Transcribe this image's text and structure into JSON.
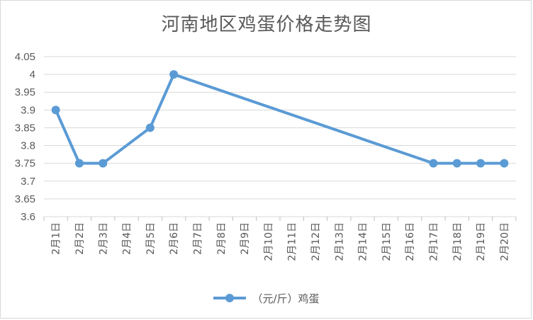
{
  "chart_data": {
    "type": "line",
    "title": "河南地区鸡蛋价格走势图",
    "categories": [
      "2月1日",
      "2月2日",
      "2月3日",
      "2月4日",
      "2月5日",
      "2月6日",
      "2月7日",
      "2月8日",
      "2月9日",
      "2月10日",
      "2月11日",
      "2月12日",
      "2月13日",
      "2月14日",
      "2月15日",
      "2月16日",
      "2月17日",
      "2月18日",
      "2月19日",
      "2月20日"
    ],
    "series": [
      {
        "name": "（元/斤）鸡蛋",
        "color": "#5b9bd5",
        "values": [
          3.9,
          3.75,
          3.75,
          null,
          3.85,
          4.0,
          null,
          null,
          null,
          null,
          null,
          null,
          null,
          null,
          null,
          null,
          3.75,
          3.75,
          3.75,
          3.75
        ]
      }
    ],
    "yticks": [
      "4.05",
      "4",
      "3.95",
      "3.9",
      "3.85",
      "3.8",
      "3.75",
      "3.7",
      "3.65",
      "3.6"
    ],
    "ylim": [
      3.6,
      4.05
    ],
    "grid": true,
    "legend_position": "bottom"
  }
}
